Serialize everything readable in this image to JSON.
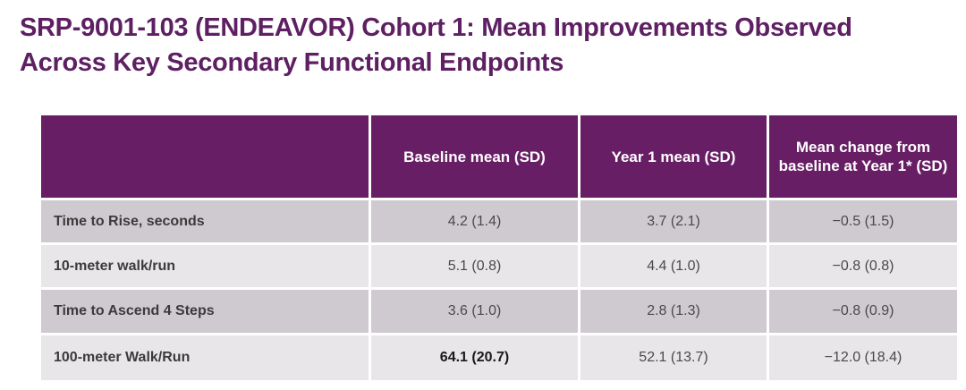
{
  "title": {
    "text": "SRP-9001-103 (ENDEAVOR) Cohort 1: Mean Improvements Observed Across Key Secondary Functional Endpoints"
  },
  "colors": {
    "title_color": "#5E2063",
    "header_bg": "#671E64",
    "header_text": "#FFFFFF",
    "row_odd": "#CFCACF",
    "row_even": "#E8E6E8"
  },
  "table": {
    "columns": [
      "",
      "Baseline mean (SD)",
      "Year 1 mean (SD)",
      "Mean change from baseline at Year 1* (SD)"
    ],
    "rows": [
      {
        "label": "Time to Rise, seconds",
        "values": [
          "4.2 (1.4)",
          "3.7 (2.1)",
          "−0.5 (1.5)"
        ]
      },
      {
        "label": "10-meter walk/run",
        "values": [
          "5.1 (0.8)",
          "4.4 (1.0)",
          "−0.8 (0.8)"
        ]
      },
      {
        "label": "Time to Ascend 4 Steps",
        "values": [
          "3.6 (1.0)",
          "2.8 (1.3)",
          "−0.8 (0.9)"
        ]
      },
      {
        "label": "100-meter Walk/Run",
        "values": [
          "64.1 (20.7)",
          "52.1 (13.7)",
          "−12.0 (18.4)"
        ]
      }
    ]
  }
}
